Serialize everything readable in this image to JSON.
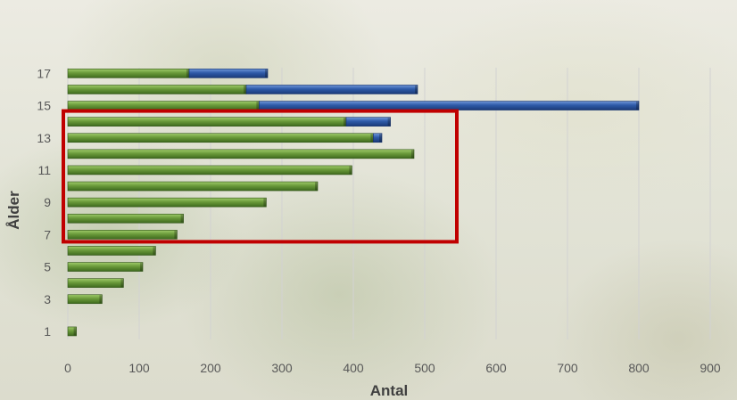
{
  "chart_data": {
    "type": "bar",
    "orientation": "horizontal",
    "stacked": true,
    "categories": [
      "1",
      "2",
      "3",
      "4",
      "5",
      "6",
      "7",
      "8",
      "9",
      "10",
      "11",
      "12",
      "13",
      "14",
      "15",
      "16",
      "17"
    ],
    "category_tick_labels": [
      "1",
      "3",
      "5",
      "7",
      "9",
      "11",
      "13",
      "15",
      "17"
    ],
    "series": [
      {
        "values": [
          12,
          0,
          48,
          78,
          105,
          123,
          153,
          162,
          278,
          350,
          398,
          485,
          428,
          390,
          268,
          250,
          170
        ],
        "color": "#5e8c31"
      },
      {
        "values": [
          0,
          0,
          0,
          0,
          0,
          0,
          0,
          0,
          0,
          0,
          0,
          0,
          12,
          62,
          532,
          240,
          110
        ],
        "color": "#2e5aa8"
      }
    ],
    "xlabel": "Antal",
    "ylabel": "Ålder",
    "xlim": [
      0,
      900
    ],
    "x_ticks": [
      0,
      100,
      200,
      300,
      400,
      500,
      600,
      700,
      800,
      900
    ],
    "grid": "vertical",
    "highlight": {
      "category_from": "7",
      "category_to": "14",
      "x_to": 545,
      "color": "#c00000"
    }
  }
}
